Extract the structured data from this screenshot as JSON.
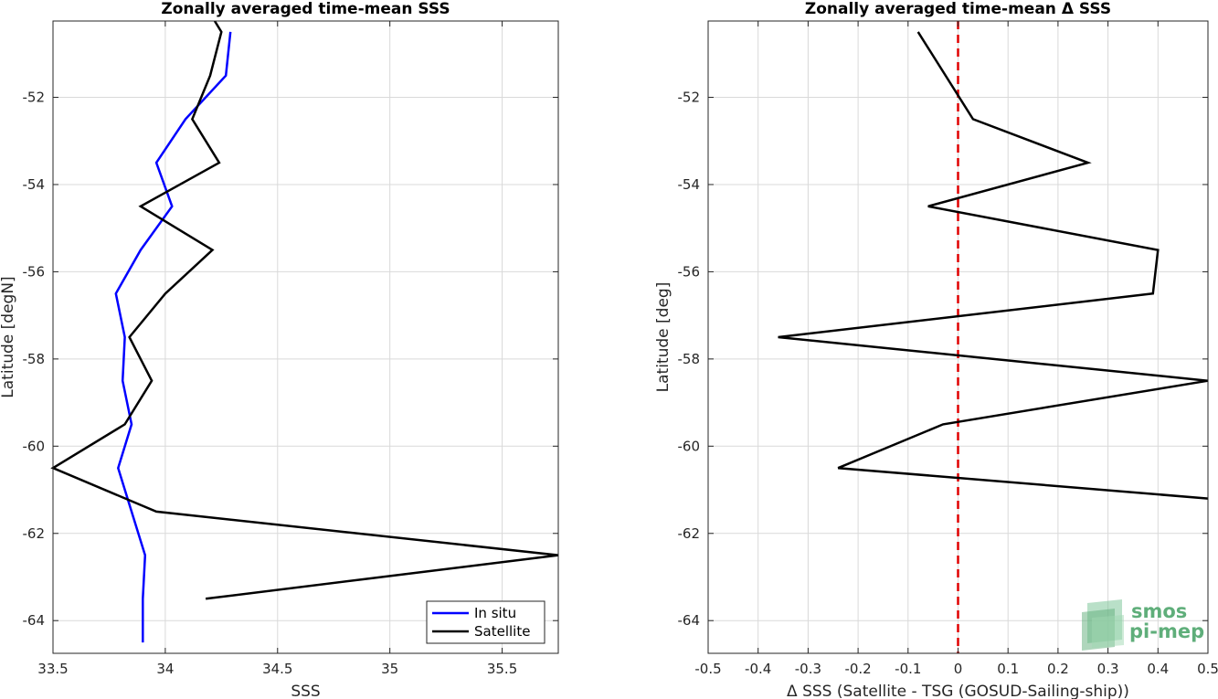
{
  "chart_data": [
    {
      "type": "line",
      "title": "Zonally averaged time-mean SSS",
      "xlabel": "SSS",
      "ylabel": "Latitude [degN]",
      "xlim": [
        33.5,
        35.75
      ],
      "ylim": [
        -64.75,
        -50.25
      ],
      "xticks": [
        33.5,
        34,
        34.5,
        35,
        35.5
      ],
      "xtick_labels": [
        "33.5",
        "34",
        "34.5",
        "35",
        "35.5"
      ],
      "yticks": [
        -64,
        -62,
        -60,
        -58,
        -56,
        -54,
        -52
      ],
      "ytick_labels": [
        "-64",
        "-62",
        "-60",
        "-58",
        "-56",
        "-54",
        "-52"
      ],
      "grid": true,
      "legend_position": "bottom-right",
      "series": [
        {
          "name": "In situ",
          "color": "#0000ff",
          "points": [
            [
              34.29,
              -50.5
            ],
            [
              34.27,
              -51.5
            ],
            [
              34.09,
              -52.5
            ],
            [
              33.96,
              -53.5
            ],
            [
              34.03,
              -54.5
            ],
            [
              33.89,
              -55.5
            ],
            [
              33.78,
              -56.5
            ],
            [
              33.82,
              -57.5
            ],
            [
              33.81,
              -58.5
            ],
            [
              33.85,
              -59.5
            ],
            [
              33.79,
              -60.5
            ],
            [
              33.85,
              -61.5
            ],
            [
              33.91,
              -62.5
            ],
            [
              33.9,
              -63.5
            ],
            [
              33.9,
              -64.5
            ]
          ]
        },
        {
          "name": "Satellite",
          "color": "#000000",
          "points": [
            [
              34.22,
              -50.25
            ],
            [
              34.25,
              -50.5
            ],
            [
              34.2,
              -51.5
            ],
            [
              34.12,
              -52.5
            ],
            [
              34.24,
              -53.5
            ],
            [
              33.89,
              -54.5
            ],
            [
              34.21,
              -55.5
            ],
            [
              34.0,
              -56.5
            ],
            [
              33.84,
              -57.5
            ],
            [
              33.94,
              -58.5
            ],
            [
              33.82,
              -59.5
            ],
            [
              33.5,
              -60.5
            ],
            [
              33.96,
              -61.5
            ],
            [
              35.75,
              -62.5
            ],
            [
              34.18,
              -63.5
            ]
          ]
        }
      ]
    },
    {
      "type": "line",
      "title": "Zonally averaged time-mean Δ SSS",
      "xlabel": "Δ SSS (Satellite - TSG (GOSUD-Sailing-ship))",
      "ylabel": "Latitude [deg]",
      "xlim": [
        -0.5,
        0.5
      ],
      "ylim": [
        -64.75,
        -50.25
      ],
      "xticks": [
        -0.5,
        -0.4,
        -0.3,
        -0.2,
        -0.1,
        0,
        0.1,
        0.2,
        0.3,
        0.4,
        0.5
      ],
      "xtick_labels": [
        "-0.5",
        "-0.4",
        "-0.3",
        "-0.2",
        "-0.1",
        "0",
        "0.1",
        "0.2",
        "0.3",
        "0.4",
        "0.5"
      ],
      "yticks": [
        -64,
        -62,
        -60,
        -58,
        -56,
        -54,
        -52
      ],
      "ytick_labels": [
        "-64",
        "-62",
        "-60",
        "-58",
        "-56",
        "-54",
        "-52"
      ],
      "grid": true,
      "reference_line": {
        "x": 0,
        "color": "#e00000",
        "style": "dashed"
      },
      "series": [
        {
          "color": "#000000",
          "points": [
            [
              -0.08,
              -50.5
            ],
            [
              0.03,
              -52.5
            ],
            [
              0.26,
              -53.5
            ],
            [
              -0.06,
              -54.5
            ],
            [
              0.4,
              -55.5
            ],
            [
              0.39,
              -56.5
            ],
            [
              -0.36,
              -57.5
            ],
            [
              0.5,
              -58.5
            ],
            [
              -0.03,
              -59.5
            ],
            [
              -0.24,
              -60.5
            ],
            [
              0.5,
              -61.2
            ]
          ]
        }
      ]
    }
  ],
  "logo": {
    "line1": "smos",
    "line2": "pi-mep"
  }
}
